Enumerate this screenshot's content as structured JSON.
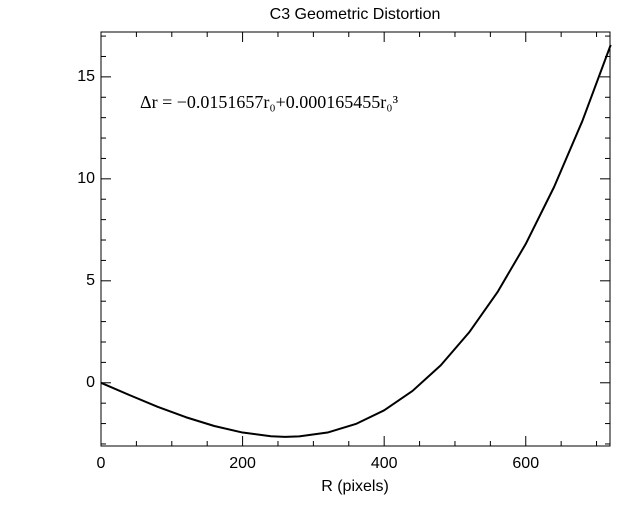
{
  "chart_data": {
    "type": "line",
    "title": "C3 Geometric Distortion",
    "xlabel": "R (pixels)",
    "annotation": "Δr = −0.0151657r₀+0.000165455r₀³",
    "x": [
      0,
      40,
      80,
      120,
      160,
      200,
      240,
      260,
      280,
      320,
      360,
      400,
      440,
      480,
      520,
      560,
      600,
      640,
      680,
      720
    ],
    "series": [
      {
        "color": "#000000",
        "values": [
          0,
          -0.6,
          -1.18,
          -1.69,
          -2.12,
          -2.44,
          -2.62,
          -2.65,
          -2.63,
          -2.44,
          -2.02,
          -1.35,
          -0.4,
          0.86,
          2.47,
          4.44,
          6.81,
          9.6,
          12.84,
          16.57
        ]
      }
    ],
    "xlim": [
      0,
      719
    ],
    "ylim": [
      -3.1,
      17.2
    ],
    "xticks": [
      0,
      200,
      400,
      600
    ],
    "yticks": [
      0,
      5,
      10,
      15
    ],
    "xminorticks": [
      50,
      100,
      150,
      250,
      300,
      350,
      450,
      500,
      550,
      650,
      700
    ],
    "yminorticks": [
      -3,
      -2,
      -1,
      1,
      2,
      3,
      4,
      6,
      7,
      8,
      9,
      11,
      12,
      13,
      14,
      16,
      17
    ]
  }
}
